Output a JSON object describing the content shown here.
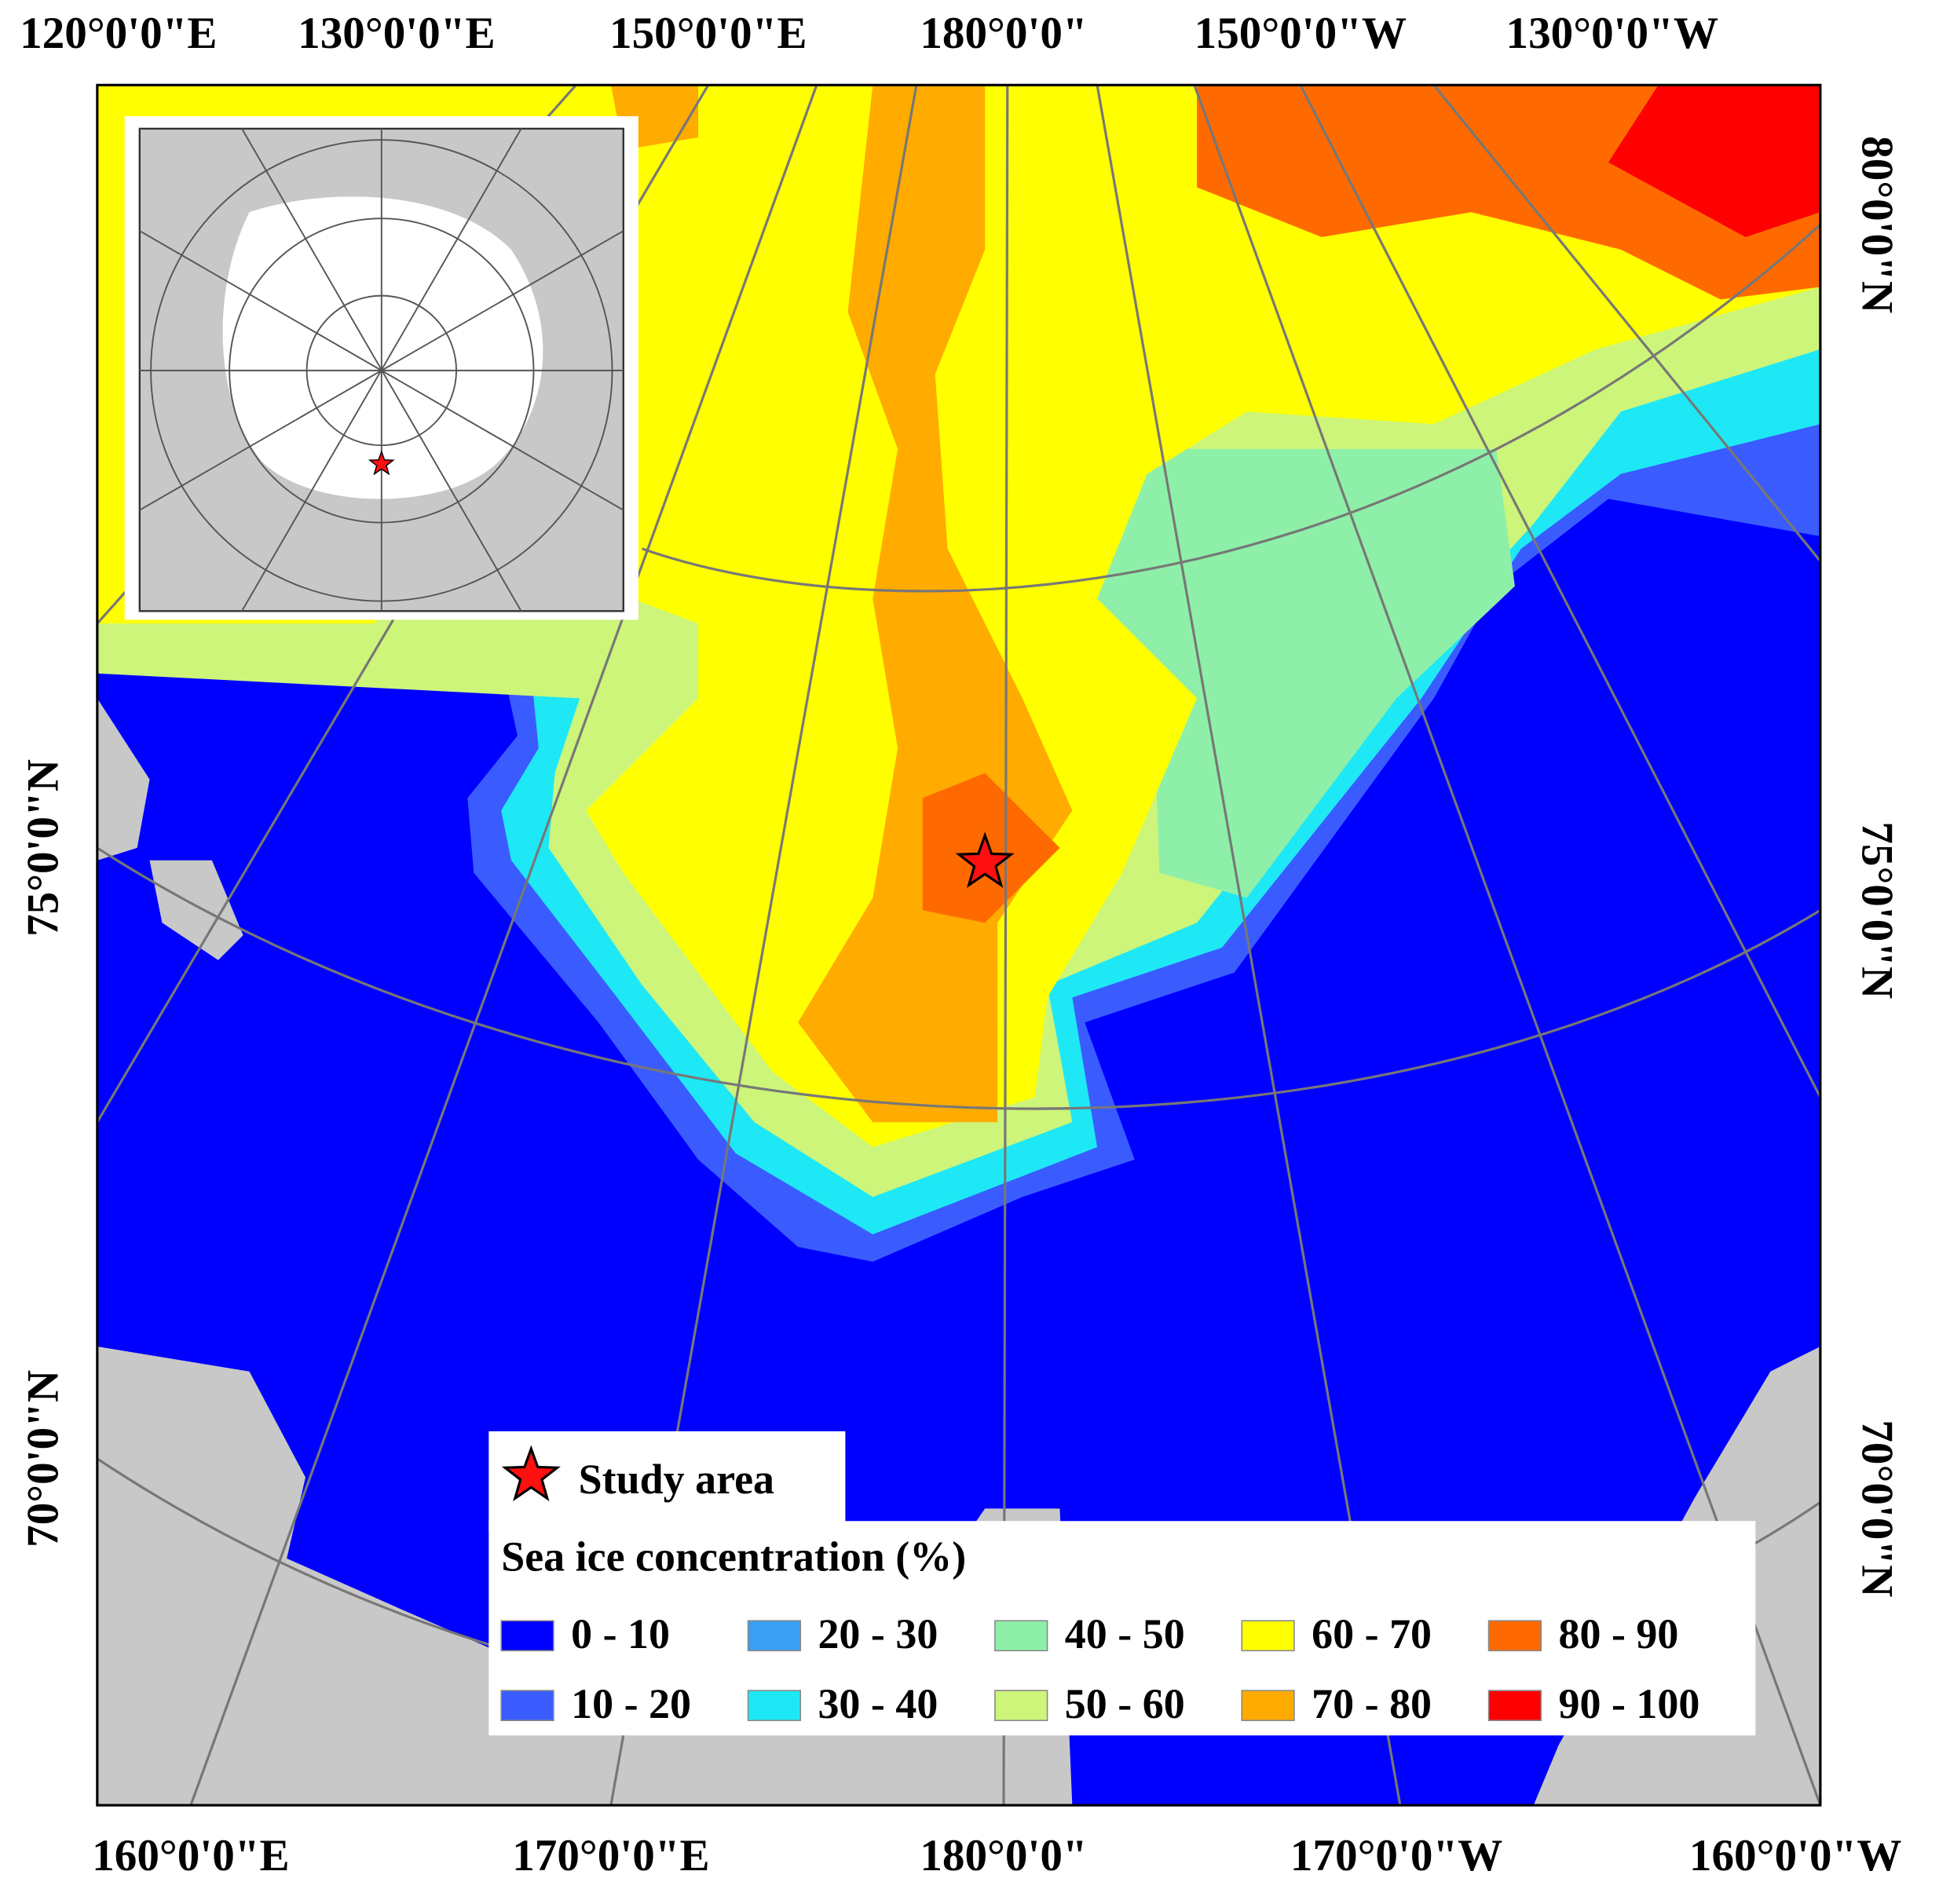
{
  "top_labels": [
    "120°0'0\"E",
    "130°0'0\"E",
    "150°0'0\"E",
    "180°0'0\"",
    "150°0'0\"W",
    "130°0'0\"W"
  ],
  "bottom_labels": [
    "160°0'0\"E",
    "170°0'0\"E",
    "180°0'0\"",
    "170°0'0\"W",
    "160°0'0\"W"
  ],
  "left_labels": [
    "75°0'0\"N",
    "70°0'0\"N"
  ],
  "right_labels": [
    "80°0'0\"N",
    "75°0'0\"N",
    "70°0'0\"N"
  ],
  "legend": {
    "study_area": "Study area",
    "title": "Sea ice concentration (%)",
    "items": [
      {
        "label": "0 - 10",
        "color": "#0000ff"
      },
      {
        "label": "10 - 20",
        "color": "#3a5cff"
      },
      {
        "label": "20 - 30",
        "color": "#3aa0f5"
      },
      {
        "label": "30 - 40",
        "color": "#1ee8f5"
      },
      {
        "label": "40 - 50",
        "color": "#8ef0a8"
      },
      {
        "label": "50 - 60",
        "color": "#ccf57a"
      },
      {
        "label": "60 - 70",
        "color": "#ffff00"
      },
      {
        "label": "70 - 80",
        "color": "#ffab00"
      },
      {
        "label": "80 - 90",
        "color": "#ff6a00"
      },
      {
        "label": "90 - 100",
        "color": "#ff0000"
      }
    ]
  }
}
